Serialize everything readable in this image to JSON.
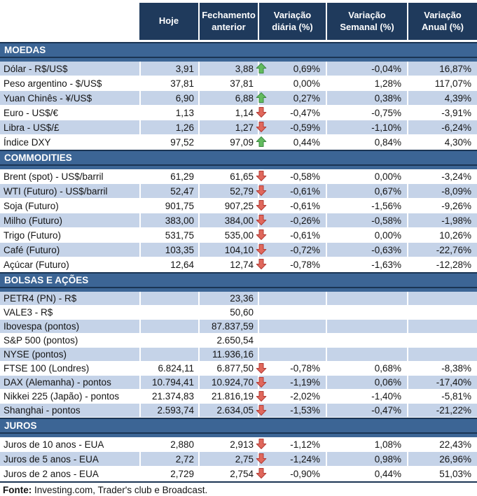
{
  "chart_data": {
    "type": "table",
    "columns": [
      "",
      "Hoje",
      "Fechamento anterior",
      "Variação diária (%)",
      "Variação Semanal (%)",
      "Variação Anual (%)"
    ],
    "sections": [
      {
        "title": "MOEDAS",
        "rows": [
          {
            "label": "Dólar - R$/US$",
            "hoje": "3,91",
            "fechamento": "3,88",
            "arrow": "up",
            "var_diaria": "0,69%",
            "var_semanal": "-0,04%",
            "var_anual": "16,87%"
          },
          {
            "label": "Peso argentino - $/US$",
            "hoje": "37,81",
            "fechamento": "37,81",
            "arrow": "",
            "var_diaria": "0,00%",
            "var_semanal": "1,28%",
            "var_anual": "117,07%"
          },
          {
            "label": "Yuan Chinês - ¥/US$",
            "hoje": "6,90",
            "fechamento": "6,88",
            "arrow": "up",
            "var_diaria": "0,27%",
            "var_semanal": "0,38%",
            "var_anual": "4,39%"
          },
          {
            "label": "Euro - US$/€",
            "hoje": "1,13",
            "fechamento": "1,14",
            "arrow": "down",
            "var_diaria": "-0,47%",
            "var_semanal": "-0,75%",
            "var_anual": "-3,91%"
          },
          {
            "label": "Libra - US$/£",
            "hoje": "1,26",
            "fechamento": "1,27",
            "arrow": "down",
            "var_diaria": "-0,59%",
            "var_semanal": "-1,10%",
            "var_anual": "-6,24%"
          },
          {
            "label": "Índice DXY",
            "hoje": "97,52",
            "fechamento": "97,09",
            "arrow": "up",
            "var_diaria": "0,44%",
            "var_semanal": "0,84%",
            "var_anual": "4,30%"
          }
        ]
      },
      {
        "title": "COMMODITIES",
        "rows": [
          {
            "label": "Brent (spot) - US$/barril",
            "hoje": "61,29",
            "fechamento": "61,65",
            "arrow": "down",
            "var_diaria": "-0,58%",
            "var_semanal": "0,00%",
            "var_anual": "-3,24%"
          },
          {
            "label": "WTI (Futuro) - US$/barril",
            "hoje": "52,47",
            "fechamento": "52,79",
            "arrow": "down",
            "var_diaria": "-0,61%",
            "var_semanal": "0,67%",
            "var_anual": "-8,09%"
          },
          {
            "label": "Soja (Futuro)",
            "hoje": "901,75",
            "fechamento": "907,25",
            "arrow": "down",
            "var_diaria": "-0,61%",
            "var_semanal": "-1,56%",
            "var_anual": "-9,26%"
          },
          {
            "label": "Milho (Futuro)",
            "hoje": "383,00",
            "fechamento": "384,00",
            "arrow": "down",
            "var_diaria": "-0,26%",
            "var_semanal": "-0,58%",
            "var_anual": "-1,98%"
          },
          {
            "label": "Trigo (Futuro)",
            "hoje": "531,75",
            "fechamento": "535,00",
            "arrow": "down",
            "var_diaria": "-0,61%",
            "var_semanal": "0,00%",
            "var_anual": "10,26%"
          },
          {
            "label": "Café (Futuro)",
            "hoje": "103,35",
            "fechamento": "104,10",
            "arrow": "down",
            "var_diaria": "-0,72%",
            "var_semanal": "-0,63%",
            "var_anual": "-22,76%"
          },
          {
            "label": "Açúcar (Futuro)",
            "hoje": "12,64",
            "fechamento": "12,74",
            "arrow": "down",
            "var_diaria": "-0,78%",
            "var_semanal": "-1,63%",
            "var_anual": "-12,28%"
          }
        ]
      },
      {
        "title": "BOLSAS E AÇÕES",
        "rows": [
          {
            "label": "PETR4 (PN) - R$",
            "hoje": "",
            "fechamento": "23,36",
            "arrow": "",
            "var_diaria": "",
            "var_semanal": "",
            "var_anual": ""
          },
          {
            "label": "VALE3 - R$",
            "hoje": "",
            "fechamento": "50,60",
            "arrow": "",
            "var_diaria": "",
            "var_semanal": "",
            "var_anual": ""
          },
          {
            "label": "Ibovespa (pontos)",
            "hoje": "",
            "fechamento": "87.837,59",
            "arrow": "",
            "var_diaria": "",
            "var_semanal": "",
            "var_anual": ""
          },
          {
            "label": "S&P 500 (pontos)",
            "hoje": "",
            "fechamento": "2.650,54",
            "arrow": "",
            "var_diaria": "",
            "var_semanal": "",
            "var_anual": ""
          },
          {
            "label": "NYSE (pontos)",
            "hoje": "",
            "fechamento": "11.936,16",
            "arrow": "",
            "var_diaria": "",
            "var_semanal": "",
            "var_anual": ""
          },
          {
            "label": "FTSE 100 (Londres)",
            "hoje": "6.824,11",
            "fechamento": "6.877,50",
            "arrow": "down",
            "var_diaria": "-0,78%",
            "var_semanal": "0,68%",
            "var_anual": "-8,38%"
          },
          {
            "label": "DAX (Alemanha) - pontos",
            "hoje": "10.794,41",
            "fechamento": "10.924,70",
            "arrow": "down",
            "var_diaria": "-1,19%",
            "var_semanal": "0,06%",
            "var_anual": "-17,40%"
          },
          {
            "label": "Nikkei 225 (Japão) - pontos",
            "hoje": "21.374,83",
            "fechamento": "21.816,19",
            "arrow": "down",
            "var_diaria": "-2,02%",
            "var_semanal": "-1,40%",
            "var_anual": "-5,81%"
          },
          {
            "label": "Shanghai - pontos",
            "hoje": "2.593,74",
            "fechamento": "2.634,05",
            "arrow": "down",
            "var_diaria": "-1,53%",
            "var_semanal": "-0,47%",
            "var_anual": "-21,22%"
          }
        ]
      },
      {
        "title": "JUROS",
        "rows": [
          {
            "label": "Juros de 10 anos - EUA",
            "hoje": "2,880",
            "fechamento": "2,913",
            "arrow": "down",
            "var_diaria": "-1,12%",
            "var_semanal": "1,08%",
            "var_anual": "22,43%"
          },
          {
            "label": "Juros de 5 anos - EUA",
            "hoje": "2,72",
            "fechamento": "2,75",
            "arrow": "down",
            "var_diaria": "-1,24%",
            "var_semanal": "0,98%",
            "var_anual": "26,96%"
          },
          {
            "label": "Juros de 2 anos - EUA",
            "hoje": "2,729",
            "fechamento": "2,754",
            "arrow": "down",
            "var_diaria": "-0,90%",
            "var_semanal": "0,44%",
            "var_anual": "51,03%"
          }
        ]
      }
    ]
  },
  "footer": {
    "label": "Fonte:",
    "text": " Investing.com, Trader's club e Broadcast."
  },
  "colors": {
    "header_bg": "#1F3A5C",
    "section_band_bg": "#3C6595",
    "section_band_border": "#1A3453",
    "stripe_row_bg": "#C5D3E8",
    "arrow_up_fill": "#62BB5E",
    "arrow_up_stroke": "#3C8A42",
    "arrow_down_fill": "#E0685C",
    "arrow_down_stroke": "#B23B35"
  }
}
